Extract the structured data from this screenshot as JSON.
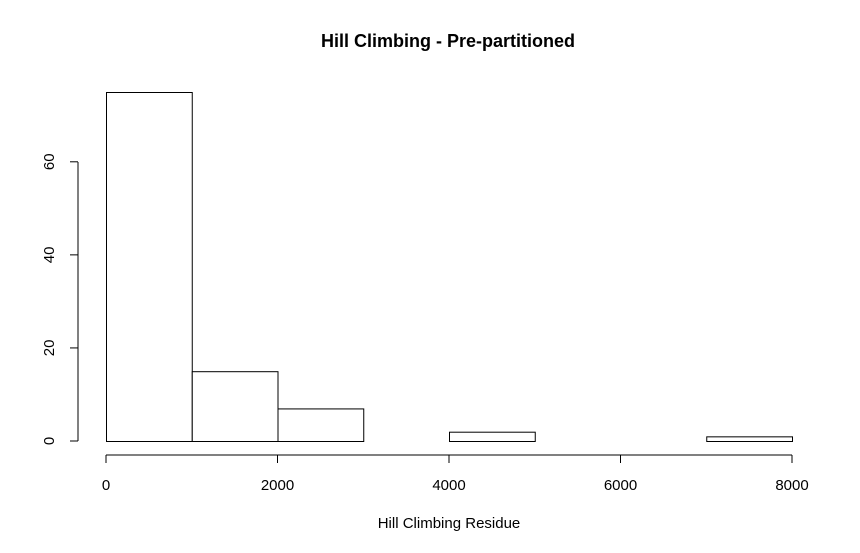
{
  "chart_data": {
    "type": "bar",
    "title": "Hill Climbing - Pre-partitioned",
    "xlabel": "Hill Climbing Residue",
    "ylabel": "",
    "bins": [
      {
        "start": 0,
        "end": 1000,
        "count": 75
      },
      {
        "start": 1000,
        "end": 2000,
        "count": 15
      },
      {
        "start": 2000,
        "end": 3000,
        "count": 7
      },
      {
        "start": 3000,
        "end": 4000,
        "count": 0
      },
      {
        "start": 4000,
        "end": 5000,
        "count": 2
      },
      {
        "start": 5000,
        "end": 6000,
        "count": 0
      },
      {
        "start": 6000,
        "end": 7000,
        "count": 0
      },
      {
        "start": 7000,
        "end": 8000,
        "count": 1
      }
    ],
    "xlim": [
      0,
      8000
    ],
    "ylim": [
      0,
      75
    ],
    "x_ticks": [
      0,
      2000,
      4000,
      6000,
      8000
    ],
    "y_ticks": [
      0,
      20,
      40,
      60
    ],
    "x_tick_labels": [
      "0",
      "2000",
      "4000",
      "6000",
      "8000"
    ],
    "y_tick_labels": [
      "0",
      "20",
      "40",
      "60"
    ],
    "grid": false,
    "bar_fill": "#ffffff",
    "bar_stroke": "#000000"
  }
}
